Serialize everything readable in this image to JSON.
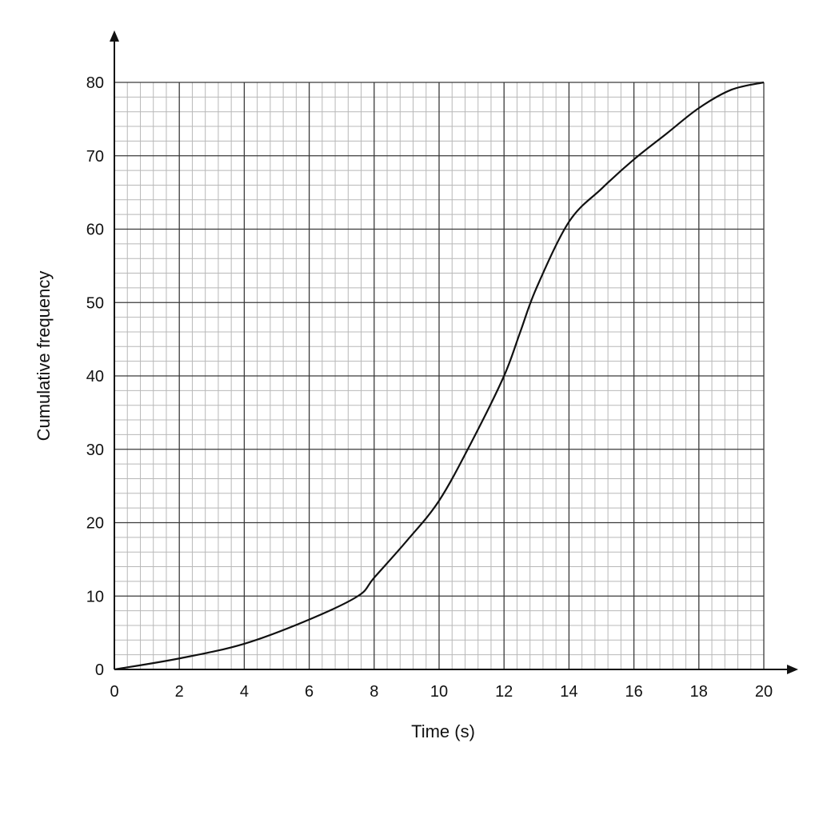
{
  "chart_data": {
    "type": "line",
    "xlabel": "Time (s)",
    "ylabel": "Cumulative frequency",
    "xlim": [
      0,
      20
    ],
    "ylim": [
      0,
      80
    ],
    "x_ticks": [
      "0",
      "2",
      "4",
      "6",
      "8",
      "10",
      "12",
      "14",
      "16",
      "18",
      "20"
    ],
    "y_ticks": [
      "0",
      "10",
      "20",
      "30",
      "40",
      "50",
      "60",
      "70",
      "80"
    ],
    "grid": true,
    "minor_grid_per_major": 5,
    "legend": "none",
    "series": [
      {
        "x": [
          0,
          2,
          4,
          6,
          7.5,
          8,
          9,
          10,
          11,
          12,
          12.5,
          13,
          14,
          15,
          16,
          17,
          18,
          19,
          20
        ],
        "y": [
          0,
          1.5,
          3.5,
          6.8,
          10,
          12.5,
          17.5,
          23,
          31,
          40,
          46,
          52,
          61,
          65.5,
          69.5,
          73,
          76.5,
          79,
          80
        ]
      }
    ],
    "colors": {
      "major_grid": "#3a3a3a",
      "minor_grid": "#b8b8b8",
      "curve": "#111111",
      "axis": "#111111"
    }
  }
}
